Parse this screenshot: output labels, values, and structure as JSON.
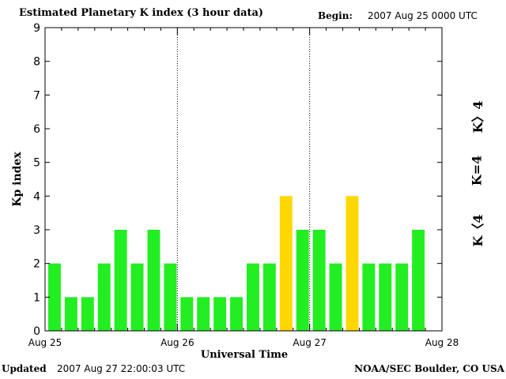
{
  "header": {
    "title": "Estimated Planetary K index (3 hour data)",
    "begin_label": "Begin:",
    "begin_value": "2007 Aug 25 0000 UTC"
  },
  "footer": {
    "updated_label": "Updated",
    "updated_value": "2007 Aug 27 22:00:03 UTC",
    "credit": "NOAA/SEC Boulder, CO USA"
  },
  "legend": {
    "high": "K〉4",
    "mid": "K=4",
    "low": "K〈4"
  },
  "colors": {
    "low": "#22ee22",
    "mid": "#ffd700",
    "high": "#ff2200",
    "axis": "#000000",
    "divider": "#000000"
  },
  "chart_data": {
    "type": "bar",
    "title": "Estimated Planetary K index (3 hour data)",
    "xlabel": "Universal Time",
    "ylabel": "Kp index",
    "ylim": [
      0,
      9
    ],
    "yticks": [
      "0",
      "1",
      "2",
      "3",
      "4",
      "5",
      "6",
      "7",
      "8",
      "9"
    ],
    "xticks": [
      "Aug 25",
      "Aug 26",
      "Aug 27",
      "Aug 28"
    ],
    "interval_hours": 3,
    "values": [
      2,
      1,
      1,
      2,
      3,
      2,
      3,
      2,
      1,
      1,
      1,
      1,
      2,
      2,
      4,
      3,
      3,
      2,
      4,
      2,
      2,
      2,
      3
    ],
    "day_dividers": [
      "Aug 26",
      "Aug 27"
    ]
  }
}
